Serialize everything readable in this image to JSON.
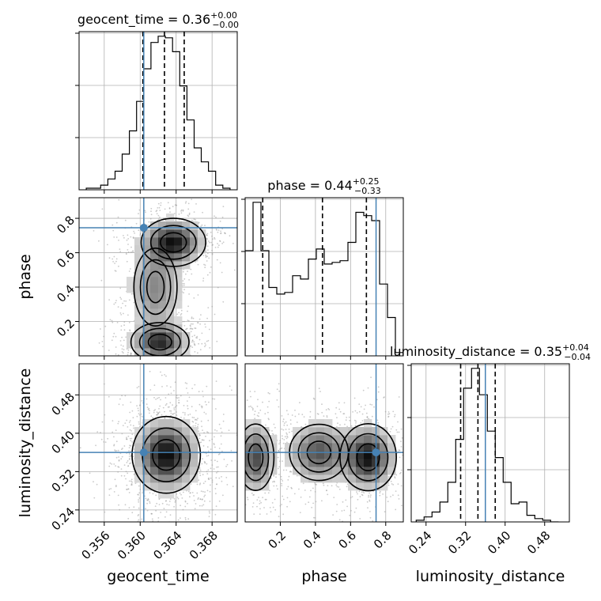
{
  "colors": {
    "truth": "#4682b4",
    "hist": "#000000",
    "grid": "#b0b0b0",
    "density": "#000000",
    "scatter": "#9e9e9e"
  },
  "chart_data": {
    "type": "corner",
    "truths": {
      "geocent_time": 0.3604,
      "phase": 0.745,
      "luminosity_distance": 0.36
    },
    "panels": [
      {
        "id": "geocent_time-hist",
        "type": "histogram",
        "row": 0,
        "col": 0,
        "param": "geocent_time",
        "title": {
          "prefix": "geocent_time = 0.36",
          "sup": "+0.00",
          "sub": "−0.00"
        },
        "xlim": [
          0.3532,
          0.3708
        ],
        "ylim": [
          0,
          1
        ],
        "grid": true,
        "show_xticklabels": false,
        "bin_edges": [
          0.354,
          0.3548,
          0.3556,
          0.3564,
          0.3572,
          0.358,
          0.3588,
          0.3596,
          0.3604,
          0.3612,
          0.362,
          0.3628,
          0.3636,
          0.3644,
          0.3652,
          0.366,
          0.3668,
          0.3676,
          0.3684,
          0.3692,
          0.37
        ],
        "counts": [
          0.01,
          0.01,
          0.03,
          0.07,
          0.12,
          0.23,
          0.38,
          0.57,
          0.78,
          0.95,
          0.99,
          0.98,
          0.89,
          0.67,
          0.45,
          0.27,
          0.18,
          0.12,
          0.03,
          0.01
        ],
        "quantiles": [
          0.3603,
          0.3627,
          0.3649
        ]
      },
      {
        "id": "phase-hist",
        "type": "histogram",
        "row": 1,
        "col": 1,
        "param": "phase",
        "title": {
          "prefix": "phase = 0.44",
          "sup": "+0.25",
          "sub": "−0.33"
        },
        "xlim": [
          0.0,
          0.9
        ],
        "ylim": [
          0,
          1
        ],
        "grid": true,
        "show_xticklabels": false,
        "bin_edges": [
          0.0,
          0.045,
          0.09,
          0.135,
          0.18,
          0.225,
          0.27,
          0.315,
          0.36,
          0.405,
          0.45,
          0.495,
          0.54,
          0.585,
          0.63,
          0.675,
          0.72,
          0.765,
          0.81,
          0.855,
          0.9
        ],
        "counts": [
          0.63,
          0.92,
          0.63,
          0.41,
          0.37,
          0.38,
          0.48,
          0.46,
          0.58,
          0.64,
          0.55,
          0.56,
          0.57,
          0.68,
          0.86,
          0.84,
          0.81,
          0.43,
          0.23,
          0.02
        ],
        "quantiles": [
          0.1,
          0.44,
          0.69
        ]
      },
      {
        "id": "luminosity_distance-hist",
        "type": "histogram",
        "row": 2,
        "col": 2,
        "param": "luminosity_distance",
        "title": {
          "prefix": "luminosity_distance = 0.35",
          "sup": "+0.04",
          "sub": "−0.04"
        },
        "xlim": [
          0.21,
          0.53
        ],
        "ylim": [
          0,
          1
        ],
        "grid": true,
        "xticks": [
          0.24,
          0.32,
          0.4,
          0.48
        ],
        "xticklabels": [
          "0.24",
          "0.32",
          "0.40",
          "0.48"
        ],
        "xlabel": "luminosity_distance",
        "bin_edges": [
          0.22,
          0.236,
          0.252,
          0.268,
          0.284,
          0.3,
          0.316,
          0.332,
          0.348,
          0.364,
          0.38,
          0.396,
          0.412,
          0.428,
          0.444,
          0.46,
          0.476,
          0.492,
          0.508
        ],
        "counts": [
          0.01,
          0.03,
          0.06,
          0.12,
          0.24,
          0.5,
          0.81,
          0.93,
          0.77,
          0.55,
          0.39,
          0.24,
          0.11,
          0.12,
          0.04,
          0.02,
          0.01,
          0.0
        ],
        "quantiles": [
          0.31,
          0.345,
          0.38
        ]
      },
      {
        "id": "phase-vs-geocent_time",
        "type": "density2d",
        "row": 1,
        "col": 0,
        "xparam": "geocent_time",
        "yparam": "phase",
        "xlim": [
          0.3532,
          0.3708
        ],
        "ylim": [
          0.0,
          0.92
        ],
        "grid": true,
        "show_xticklabels": false,
        "yticks": [
          0.2,
          0.4,
          0.6,
          0.8
        ],
        "yticklabels": [
          "0.2",
          "0.4",
          "0.6",
          "0.8"
        ],
        "ylabel": "phase",
        "modes": [
          {
            "x": 0.3637,
            "y": 0.66,
            "sx": 0.0018,
            "sy": 0.07,
            "w": 1.0,
            "rho": 0.0
          },
          {
            "x": 0.3622,
            "y": 0.08,
            "sx": 0.0017,
            "sy": 0.06,
            "w": 0.9,
            "rho": 0.0
          },
          {
            "x": 0.3617,
            "y": 0.4,
            "sx": 0.0017,
            "sy": 0.16,
            "w": 0.5,
            "rho": 0.0
          }
        ]
      },
      {
        "id": "luminosity_distance-vs-geocent_time",
        "type": "density2d",
        "row": 2,
        "col": 0,
        "xparam": "geocent_time",
        "yparam": "luminosity_distance",
        "xlim": [
          0.3532,
          0.3708
        ],
        "ylim": [
          0.215,
          0.545
        ],
        "grid": true,
        "xticks": [
          0.356,
          0.36,
          0.364,
          0.368
        ],
        "xticklabels": [
          "0.356",
          "0.360",
          "0.364",
          "0.368"
        ],
        "yticks": [
          0.24,
          0.32,
          0.4,
          0.48
        ],
        "yticklabels": [
          "0.24",
          "0.32",
          "0.40",
          "0.48"
        ],
        "xlabel": "geocent_time",
        "ylabel": "luminosity_distance",
        "modes": [
          {
            "x": 0.3629,
            "y": 0.355,
            "sx": 0.0019,
            "sy": 0.04,
            "w": 1.0,
            "rho": 0.0
          }
        ]
      },
      {
        "id": "luminosity_distance-vs-phase",
        "type": "density2d",
        "row": 2,
        "col": 1,
        "xparam": "phase",
        "yparam": "luminosity_distance",
        "xlim": [
          0.0,
          0.9
        ],
        "ylim": [
          0.215,
          0.545
        ],
        "grid": true,
        "xticks": [
          0.2,
          0.4,
          0.6,
          0.8
        ],
        "xticklabels": [
          "0.2",
          "0.4",
          "0.6",
          "0.8"
        ],
        "xlabel": "phase",
        "modes": [
          {
            "x": 0.06,
            "y": 0.35,
            "sx": 0.06,
            "sy": 0.04,
            "w": 0.75,
            "rho": 0.0
          },
          {
            "x": 0.42,
            "y": 0.36,
            "sx": 0.1,
            "sy": 0.035,
            "w": 0.7,
            "rho": 0.0
          },
          {
            "x": 0.7,
            "y": 0.35,
            "sx": 0.08,
            "sy": 0.035,
            "w": 1.0,
            "rho": 0.0
          }
        ]
      }
    ]
  }
}
